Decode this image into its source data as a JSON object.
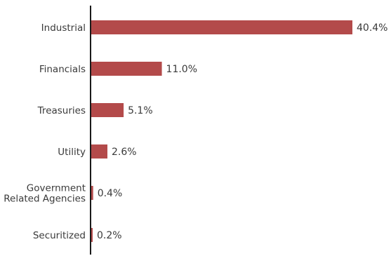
{
  "chart_data": {
    "type": "bar",
    "orientation": "horizontal",
    "categories": [
      [
        "Industrial"
      ],
      [
        "Financials"
      ],
      [
        "Treasuries"
      ],
      [
        "Utility"
      ],
      [
        "Government",
        "Related Agencies"
      ],
      [
        "Securitized"
      ]
    ],
    "values": [
      40.4,
      11.0,
      5.1,
      2.6,
      0.4,
      0.2
    ],
    "value_labels": [
      "40.4%",
      "11.0%",
      "5.1%",
      "2.6%",
      "0.4%",
      "0.2%"
    ],
    "title": "",
    "xlabel": "",
    "ylabel": "",
    "xlim": [
      0,
      40.4
    ],
    "grid": false,
    "legend": "none",
    "bar_color": "#b34a4a",
    "axis_color": "#1a1a1a"
  }
}
